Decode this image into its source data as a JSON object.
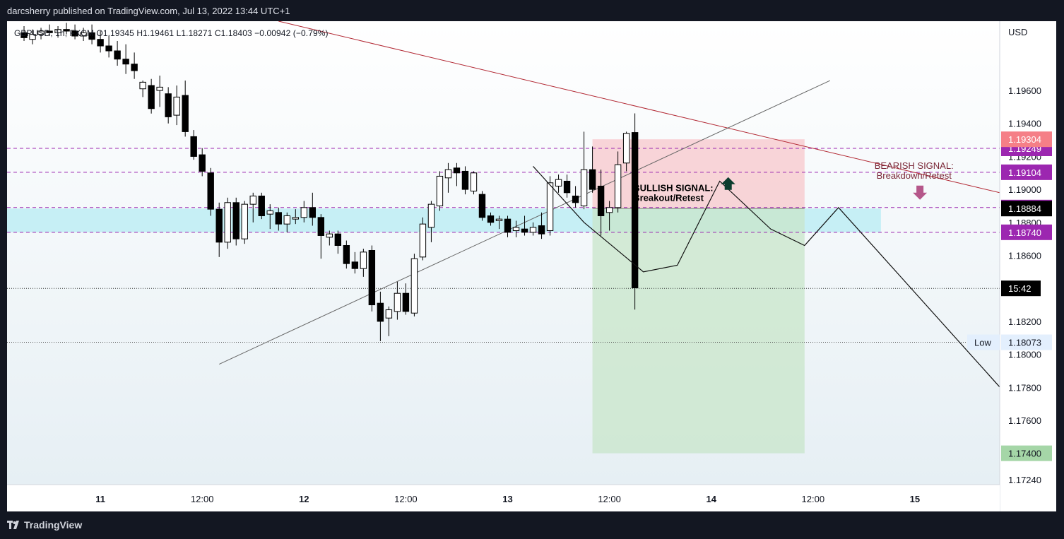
{
  "header": {
    "publish_line": "darcsherry published on TradingView.com, Jul 13, 2022 13:44 UTC+1"
  },
  "footer": {
    "brand": "TradingView"
  },
  "legend": {
    "text": "GBPUSD, 1h, FXCM  O1.19345  H1.19461  L1.18271  C1.18403  −0.00942 (−0.79%)"
  },
  "colors": {
    "up": "#ffffff",
    "down": "#000000",
    "level": "#9c27b0",
    "trend": "#b22833",
    "zone": "#b2ebf2",
    "stop": "#f8bbc0",
    "target": "#c8e6c9"
  },
  "chart_data": {
    "type": "candlestick",
    "symbol": "GBPUSD",
    "interval": "1h",
    "currency": "USD",
    "y_ticks": [
      1.196,
      1.194,
      1.192,
      1.19,
      1.188,
      1.186,
      1.182,
      1.18,
      1.178,
      1.176,
      1.1724
    ],
    "y_tick_labels": [
      "1.19600",
      "1.19400",
      "1.19200",
      "1.19000",
      "1.18800",
      "1.18600",
      "1.18200",
      "1.18000",
      "1.17800",
      "1.17600",
      "1.17240"
    ],
    "ylim": [
      1.1721,
      1.2002
    ],
    "x_ticks": [
      {
        "label": "11",
        "t": 0,
        "bold": true
      },
      {
        "label": "12:00",
        "t": 12
      },
      {
        "label": "12",
        "t": 24,
        "bold": true
      },
      {
        "label": "12:00",
        "t": 36
      },
      {
        "label": "13",
        "t": 48,
        "bold": true
      },
      {
        "label": "12:00",
        "t": 60
      },
      {
        "label": "14",
        "t": 72,
        "bold": true
      },
      {
        "label": "12:00",
        "t": 84
      },
      {
        "label": "15",
        "t": 96,
        "bold": true
      }
    ],
    "x_range": [
      -11,
      106
    ],
    "candles": [
      {
        "t": -9,
        "o": 1.1995,
        "h": 1.1999,
        "l": 1.199,
        "c": 1.1992
      },
      {
        "t": -8,
        "o": 1.1991,
        "h": 1.1997,
        "l": 1.1988,
        "c": 1.1994
      },
      {
        "t": -7,
        "o": 1.1994,
        "h": 1.1998,
        "l": 1.1991,
        "c": 1.1996
      },
      {
        "t": -6,
        "o": 1.1996,
        "h": 1.2,
        "l": 1.1993,
        "c": 1.1995
      },
      {
        "t": -5,
        "o": 1.1995,
        "h": 1.1999,
        "l": 1.1992,
        "c": 1.1997
      },
      {
        "t": -4,
        "o": 1.1997,
        "h": 1.2001,
        "l": 1.1994,
        "c": 1.1996
      },
      {
        "t": -3,
        "o": 1.1996,
        "h": 1.2,
        "l": 1.1991,
        "c": 1.1993
      },
      {
        "t": -2,
        "o": 1.1993,
        "h": 1.1998,
        "l": 1.199,
        "c": 1.1995
      },
      {
        "t": -1,
        "o": 1.1995,
        "h": 1.2,
        "l": 1.1988,
        "c": 1.1991
      },
      {
        "t": 0,
        "o": 1.1991,
        "h": 1.1996,
        "l": 1.1983,
        "c": 1.1987
      },
      {
        "t": 1,
        "o": 1.1987,
        "h": 1.1993,
        "l": 1.198,
        "c": 1.1984
      },
      {
        "t": 2,
        "o": 1.1984,
        "h": 1.199,
        "l": 1.1975,
        "c": 1.1979
      },
      {
        "t": 3,
        "o": 1.1979,
        "h": 1.1988,
        "l": 1.197,
        "c": 1.1976
      },
      {
        "t": 4,
        "o": 1.1976,
        "h": 1.1983,
        "l": 1.1967,
        "c": 1.1972
      },
      {
        "t": 5,
        "o": 1.1961,
        "h": 1.1966,
        "l": 1.1956,
        "c": 1.1965
      },
      {
        "t": 6,
        "o": 1.1963,
        "h": 1.1967,
        "l": 1.1946,
        "c": 1.1949
      },
      {
        "t": 7,
        "o": 1.196,
        "h": 1.1969,
        "l": 1.195,
        "c": 1.1962
      },
      {
        "t": 8,
        "o": 1.1958,
        "h": 1.1962,
        "l": 1.194,
        "c": 1.1944
      },
      {
        "t": 9,
        "o": 1.1945,
        "h": 1.1963,
        "l": 1.1939,
        "c": 1.1956
      },
      {
        "t": 10,
        "o": 1.1957,
        "h": 1.1966,
        "l": 1.1932,
        "c": 1.1935
      },
      {
        "t": 11,
        "o": 1.1932,
        "h": 1.1936,
        "l": 1.1918,
        "c": 1.192
      },
      {
        "t": 12,
        "o": 1.1921,
        "h": 1.1925,
        "l": 1.1908,
        "c": 1.1911
      },
      {
        "t": 13,
        "o": 1.191,
        "h": 1.1913,
        "l": 1.1884,
        "c": 1.1888
      },
      {
        "t": 14,
        "o": 1.1888,
        "h": 1.1892,
        "l": 1.1859,
        "c": 1.1868
      },
      {
        "t": 15,
        "o": 1.1868,
        "h": 1.1895,
        "l": 1.1864,
        "c": 1.1892
      },
      {
        "t": 16,
        "o": 1.1892,
        "h": 1.1895,
        "l": 1.1866,
        "c": 1.187
      },
      {
        "t": 17,
        "o": 1.187,
        "h": 1.1893,
        "l": 1.1867,
        "c": 1.1891
      },
      {
        "t": 18,
        "o": 1.1891,
        "h": 1.1898,
        "l": 1.188,
        "c": 1.1896
      },
      {
        "t": 19,
        "o": 1.1896,
        "h": 1.1898,
        "l": 1.1882,
        "c": 1.1884
      },
      {
        "t": 20,
        "o": 1.1885,
        "h": 1.1891,
        "l": 1.1876,
        "c": 1.1887
      },
      {
        "t": 21,
        "o": 1.1886,
        "h": 1.1889,
        "l": 1.1875,
        "c": 1.1879
      },
      {
        "t": 22,
        "o": 1.1879,
        "h": 1.1886,
        "l": 1.1874,
        "c": 1.1884
      },
      {
        "t": 23,
        "o": 1.1882,
        "h": 1.1888,
        "l": 1.1879,
        "c": 1.1883
      },
      {
        "t": 24,
        "o": 1.1883,
        "h": 1.1893,
        "l": 1.188,
        "c": 1.1889
      },
      {
        "t": 25,
        "o": 1.1889,
        "h": 1.1898,
        "l": 1.1878,
        "c": 1.1883
      },
      {
        "t": 26,
        "o": 1.1883,
        "h": 1.1885,
        "l": 1.1858,
        "c": 1.1872
      },
      {
        "t": 27,
        "o": 1.1871,
        "h": 1.1875,
        "l": 1.1866,
        "c": 1.1873
      },
      {
        "t": 28,
        "o": 1.1873,
        "h": 1.1875,
        "l": 1.1861,
        "c": 1.1866
      },
      {
        "t": 29,
        "o": 1.1866,
        "h": 1.1869,
        "l": 1.1852,
        "c": 1.1855
      },
      {
        "t": 30,
        "o": 1.1856,
        "h": 1.1862,
        "l": 1.1849,
        "c": 1.1852
      },
      {
        "t": 31,
        "o": 1.1852,
        "h": 1.1864,
        "l": 1.1847,
        "c": 1.1862
      },
      {
        "t": 32,
        "o": 1.1863,
        "h": 1.1866,
        "l": 1.1826,
        "c": 1.183
      },
      {
        "t": 33,
        "o": 1.1831,
        "h": 1.1838,
        "l": 1.1808,
        "c": 1.182
      },
      {
        "t": 34,
        "o": 1.1822,
        "h": 1.1829,
        "l": 1.1811,
        "c": 1.1827
      },
      {
        "t": 35,
        "o": 1.1826,
        "h": 1.1844,
        "l": 1.1821,
        "c": 1.1837
      },
      {
        "t": 36,
        "o": 1.1837,
        "h": 1.1843,
        "l": 1.1824,
        "c": 1.1826
      },
      {
        "t": 37,
        "o": 1.1825,
        "h": 1.1861,
        "l": 1.1823,
        "c": 1.1858
      },
      {
        "t": 38,
        "o": 1.1859,
        "h": 1.1883,
        "l": 1.1857,
        "c": 1.1879
      },
      {
        "t": 39,
        "o": 1.1877,
        "h": 1.1893,
        "l": 1.1868,
        "c": 1.1891
      },
      {
        "t": 40,
        "o": 1.189,
        "h": 1.1911,
        "l": 1.1887,
        "c": 1.1908
      },
      {
        "t": 41,
        "o": 1.1907,
        "h": 1.1916,
        "l": 1.1898,
        "c": 1.1912
      },
      {
        "t": 42,
        "o": 1.1913,
        "h": 1.1916,
        "l": 1.1902,
        "c": 1.191
      },
      {
        "t": 43,
        "o": 1.1911,
        "h": 1.1914,
        "l": 1.1897,
        "c": 1.19
      },
      {
        "t": 44,
        "o": 1.1899,
        "h": 1.1911,
        "l": 1.1897,
        "c": 1.191
      },
      {
        "t": 45,
        "o": 1.1897,
        "h": 1.1899,
        "l": 1.1881,
        "c": 1.1883
      },
      {
        "t": 46,
        "o": 1.1884,
        "h": 1.1886,
        "l": 1.1878,
        "c": 1.188
      },
      {
        "t": 47,
        "o": 1.1881,
        "h": 1.1884,
        "l": 1.1876,
        "c": 1.1882
      },
      {
        "t": 48,
        "o": 1.1882,
        "h": 1.1884,
        "l": 1.1871,
        "c": 1.1874
      },
      {
        "t": 49,
        "o": 1.1875,
        "h": 1.1881,
        "l": 1.1871,
        "c": 1.1877
      },
      {
        "t": 50,
        "o": 1.1876,
        "h": 1.1884,
        "l": 1.1872,
        "c": 1.1874
      },
      {
        "t": 51,
        "o": 1.1874,
        "h": 1.188,
        "l": 1.1872,
        "c": 1.1877
      },
      {
        "t": 52,
        "o": 1.1878,
        "h": 1.1886,
        "l": 1.187,
        "c": 1.1873
      },
      {
        "t": 53,
        "o": 1.1875,
        "h": 1.1908,
        "l": 1.1872,
        "c": 1.1904
      },
      {
        "t": 54,
        "o": 1.1902,
        "h": 1.1909,
        "l": 1.1898,
        "c": 1.1906
      },
      {
        "t": 55,
        "o": 1.1905,
        "h": 1.1909,
        "l": 1.1895,
        "c": 1.1898
      },
      {
        "t": 56,
        "o": 1.1896,
        "h": 1.1902,
        "l": 1.1889,
        "c": 1.1892
      },
      {
        "t": 57,
        "o": 1.189,
        "h": 1.1935,
        "l": 1.1888,
        "c": 1.1912
      },
      {
        "t": 58,
        "o": 1.1912,
        "h": 1.1926,
        "l": 1.1898,
        "c": 1.19
      },
      {
        "t": 59,
        "o": 1.1902,
        "h": 1.1912,
        "l": 1.1872,
        "c": 1.1884
      },
      {
        "t": 60,
        "o": 1.1886,
        "h": 1.1893,
        "l": 1.1875,
        "c": 1.1889
      },
      {
        "t": 61,
        "o": 1.1889,
        "h": 1.1923,
        "l": 1.1886,
        "c": 1.1915
      },
      {
        "t": 62,
        "o": 1.1916,
        "h": 1.1935,
        "l": 1.1911,
        "c": 1.1934
      },
      {
        "t": 63,
        "o": 1.19345,
        "h": 1.19461,
        "l": 1.18271,
        "c": 1.18403
      }
    ],
    "levels": [
      {
        "value": 1.19249,
        "label": "1.19249",
        "dashed": true
      },
      {
        "value": 1.19104,
        "label": "1.19104",
        "dashed": true
      },
      {
        "value": 1.1889,
        "label": "1.18890",
        "dashed": true
      },
      {
        "value": 1.1874,
        "label": "1.18740",
        "dashed": true
      }
    ],
    "price_labels": [
      {
        "value": 1.19304,
        "label": "1.19304",
        "kind": "stop"
      },
      {
        "value": 1.18884,
        "label": "1.18884",
        "kind": "entry"
      },
      {
        "value": 1.174,
        "label": "1.17400",
        "kind": "target"
      },
      {
        "value": 1.18073,
        "label": "1.18073",
        "kind": "low",
        "prefix": "Low"
      }
    ],
    "countdown": {
      "value": 1.184,
      "label": "15:42"
    },
    "low_line": 1.18073,
    "support_zone": {
      "t_start": -11,
      "t_end": 92,
      "low": 1.1874,
      "high": 1.18884
    },
    "position": {
      "t_start": 58,
      "t_end": 83,
      "entry": 1.18884,
      "stop": 1.19304,
      "target": 1.174
    },
    "trendlines": [
      {
        "name": "descending",
        "points": [
          [
            21,
            1.2002
          ],
          [
            106,
            1.1898
          ]
        ]
      },
      {
        "name": "ascending",
        "points": [
          [
            14,
            1.1794
          ],
          [
            86,
            1.1966
          ]
        ]
      }
    ],
    "projection_path": [
      [
        51,
        1.1914
      ],
      [
        57,
        1.188
      ],
      [
        64,
        1.185
      ],
      [
        68,
        1.1854
      ],
      [
        73,
        1.1905
      ],
      [
        79,
        1.1876
      ],
      [
        83,
        1.1866
      ],
      [
        87,
        1.1889
      ],
      [
        109,
        1.1763
      ]
    ],
    "annotations": [
      {
        "name": "bullish",
        "lines": [
          "BULLISH SIGNAL:",
          "Breakout/Retest"
        ],
        "t": 62.8,
        "y": 1.1899,
        "color": "#000000",
        "align": "start"
      },
      {
        "name": "bearish",
        "lines": [
          "BEARISH SIGNAL:",
          "Breakdown/Retest"
        ],
        "t": 95.9,
        "y": 1.19125,
        "color": "#7b2838",
        "align": "middle"
      }
    ],
    "arrows": [
      {
        "name": "bullish-up-arrow",
        "t": 74,
        "y": 1.1898,
        "dir": "up",
        "color": "#0b3d2e"
      },
      {
        "name": "bearish-down-arrow",
        "t": 96.6,
        "y": 1.1898,
        "dir": "down",
        "color": "#b5578a"
      }
    ]
  }
}
